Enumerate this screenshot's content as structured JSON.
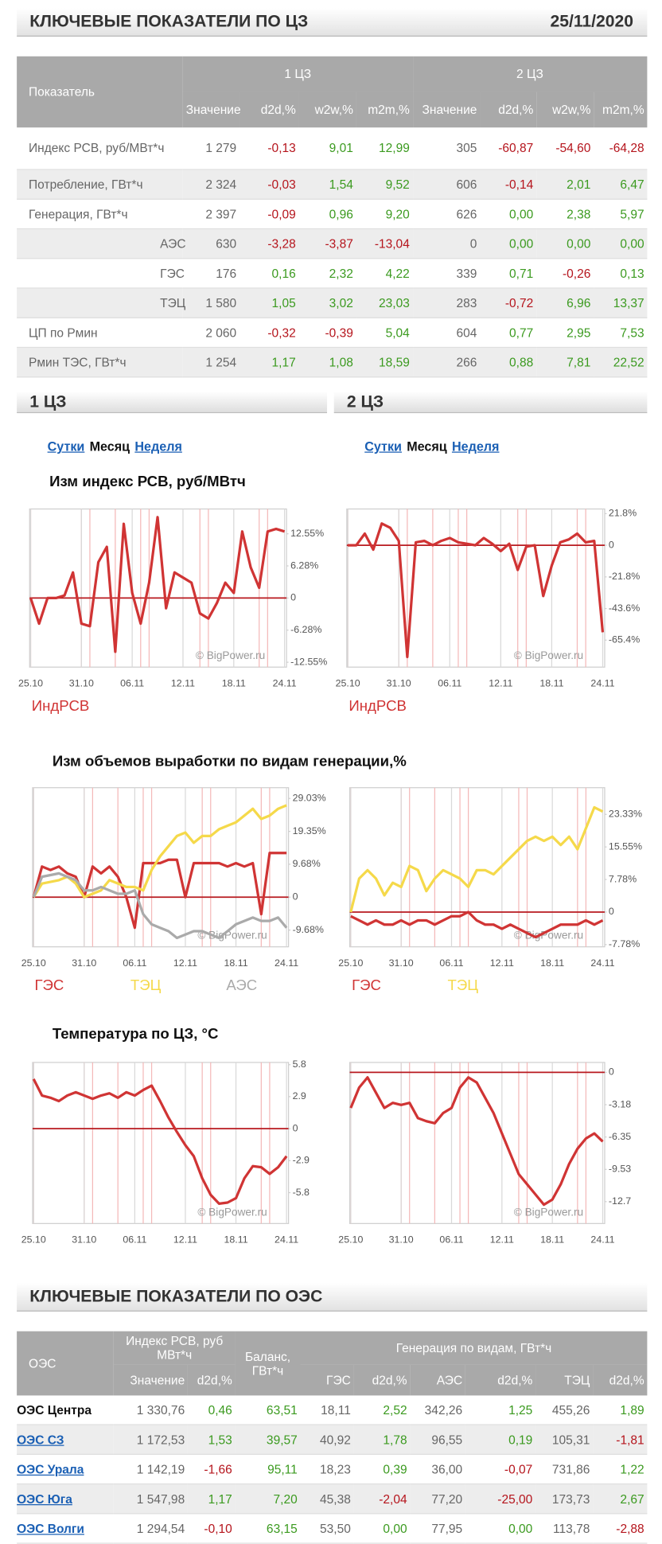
{
  "header": {
    "title": "КЛЮЧЕВЫЕ ПОКАЗАТЕЛИ ПО ЦЗ",
    "date": "25/11/2020"
  },
  "table1": {
    "header": {
      "indicator": "Показатель",
      "groups": [
        "1 ЦЗ",
        "2 ЦЗ"
      ],
      "columns": [
        "Значение",
        "d2d,%",
        "w2w,%",
        "m2m,%",
        "Значение",
        "d2d,%",
        "w2w,%",
        "m2m,%"
      ]
    },
    "rows": [
      {
        "label": "Индекс РСВ, руб/МВт*ч",
        "sub": false,
        "values": [
          "1 279",
          "-0,13",
          "9,01",
          "12,99",
          "305",
          "-60,87",
          "-54,60",
          "-64,28"
        ]
      },
      {
        "label": "Потребление, ГВт*ч",
        "sub": false,
        "values": [
          "2 324",
          "-0,03",
          "1,54",
          "9,52",
          "606",
          "-0,14",
          "2,01",
          "6,47"
        ]
      },
      {
        "label": "Генерация, ГВт*ч",
        "sub": false,
        "values": [
          "2 397",
          "-0,09",
          "0,96",
          "9,20",
          "626",
          "0,00",
          "2,38",
          "5,97"
        ]
      },
      {
        "label": "АЭС",
        "sub": true,
        "values": [
          "630",
          "-3,28",
          "-3,87",
          "-13,04",
          "0",
          "0,00",
          "0,00",
          "0,00"
        ]
      },
      {
        "label": "ГЭС",
        "sub": true,
        "values": [
          "176",
          "0,16",
          "2,32",
          "4,22",
          "339",
          "0,71",
          "-0,26",
          "0,13"
        ]
      },
      {
        "label": "ТЭЦ",
        "sub": true,
        "values": [
          "1 580",
          "1,05",
          "3,02",
          "23,03",
          "283",
          "-0,72",
          "6,96",
          "13,37"
        ]
      },
      {
        "label": "ЦП по Рмин",
        "sub": false,
        "values": [
          "2 060",
          "-0,32",
          "-0,39",
          "5,04",
          "604",
          "0,77",
          "2,95",
          "7,53"
        ]
      },
      {
        "label": "Рмин ТЭС, ГВт*ч",
        "sub": false,
        "values": [
          "1 254",
          "1,17",
          "1,08",
          "18,59",
          "266",
          "0,88",
          "7,81",
          "22,52"
        ]
      }
    ]
  },
  "zones": [
    {
      "title": "1 ЦЗ",
      "tabs": [
        "Сутки",
        "Месяц",
        "Неделя"
      ],
      "active_tab": 1
    },
    {
      "title": "2 ЦЗ",
      "tabs": [
        "Сутки",
        "Месяц",
        "Неделя"
      ],
      "active_tab": 1
    }
  ],
  "section_titles": [
    "Изм индекс РСВ, руб/МВтч",
    "Изм объемов выработки по видам генерации,%",
    "Температура по ЦЗ, °С"
  ],
  "chart_data": [
    {
      "type": "line",
      "watermark": "© BigPower.ru",
      "categories": [
        "25.10",
        null,
        null,
        null,
        null,
        null,
        "31.10",
        null,
        null,
        null,
        null,
        null,
        "06.11",
        null,
        null,
        null,
        null,
        null,
        "12.11",
        null,
        null,
        null,
        null,
        null,
        "18.11",
        null,
        null,
        null,
        null,
        null,
        "24.11"
      ],
      "ylim": [
        -13.5,
        17.4
      ],
      "yticks": [
        {
          "value": 12.55,
          "label": "12.55%"
        },
        {
          "value": 6.28,
          "label": "6.28%"
        },
        0,
        {
          "value": -6.28,
          "label": "-6.28%"
        },
        {
          "value": -12.55,
          "label": "-12.55%"
        }
      ],
      "series": [
        {
          "name": "ИндРСВ",
          "color": "#d03434",
          "values": [
            0,
            -5,
            0,
            0,
            0.5,
            5,
            -5,
            -5.5,
            7,
            10,
            -10.5,
            14.5,
            1,
            -5,
            3,
            15.8,
            -2,
            5,
            4,
            3,
            -3,
            -4,
            -1,
            3,
            1,
            13,
            6,
            2,
            13,
            13.5,
            13
          ]
        }
      ]
    },
    {
      "type": "line",
      "watermark": "© BigPower.ru",
      "categories": [
        "25.10",
        null,
        null,
        null,
        null,
        null,
        "31.10",
        null,
        null,
        null,
        null,
        null,
        "06.11",
        null,
        null,
        null,
        null,
        null,
        "12.11",
        null,
        null,
        null,
        null,
        null,
        "18.11",
        null,
        null,
        null,
        null,
        null,
        "24.11"
      ],
      "ylim": [
        -84,
        25
      ],
      "yticks": [
        {
          "value": 21.8,
          "label": "21.8%"
        },
        0,
        {
          "value": -21.8,
          "label": "-21.8%"
        },
        {
          "value": -43.6,
          "label": "-43.6%"
        },
        {
          "value": -65.4,
          "label": "-65.4%"
        }
      ],
      "series": [
        {
          "name": "ИндРСВ",
          "color": "#d03434",
          "values": [
            0,
            0,
            8,
            -3,
            15,
            12,
            3,
            -77,
            2,
            3,
            0,
            3,
            5,
            2,
            1,
            0,
            5,
            1,
            -4,
            1,
            -17,
            -1,
            0,
            -35,
            -14,
            2,
            4,
            8,
            2,
            3,
            -60
          ]
        }
      ]
    },
    {
      "type": "line",
      "watermark": "© BigPower.ru",
      "categories": [
        "25.10",
        null,
        null,
        null,
        null,
        null,
        "31.10",
        null,
        null,
        null,
        null,
        null,
        "06.11",
        null,
        null,
        null,
        null,
        null,
        "12.11",
        null,
        null,
        null,
        null,
        null,
        "18.11",
        null,
        null,
        null,
        null,
        null,
        "24.11"
      ],
      "ylim": [
        -14.6,
        32.2
      ],
      "yticks": [
        {
          "value": 29.03,
          "label": "29.03%"
        },
        {
          "value": 19.35,
          "label": "19.35%"
        },
        {
          "value": 9.68,
          "label": "9.68%"
        },
        0,
        {
          "value": -9.68,
          "label": "-9.68%"
        }
      ],
      "series": [
        {
          "name": "ГЭС",
          "color": "#d03434",
          "values": [
            0,
            9,
            8,
            9,
            7,
            6,
            0,
            9,
            7,
            9,
            6,
            0,
            -9,
            10,
            10,
            10,
            11,
            11,
            0,
            10,
            10,
            10,
            10,
            9,
            10,
            9,
            10,
            -5,
            13,
            13,
            13
          ]
        },
        {
          "name": "ТЭЦ",
          "color": "#f5d94a",
          "values": [
            0,
            4,
            4.5,
            5,
            6,
            4,
            0,
            1,
            2,
            5,
            4,
            3,
            3,
            2,
            8,
            12,
            15,
            18,
            19,
            16,
            18,
            18,
            20,
            21,
            22,
            24,
            26,
            23,
            24,
            26,
            27
          ]
        },
        {
          "name": "АЭС",
          "color": "#aaaaaa",
          "values": [
            0,
            6,
            6.5,
            7,
            6,
            5,
            2,
            2,
            3,
            2,
            1,
            1,
            2,
            -5,
            -8,
            -9,
            -10,
            -12,
            -11,
            -10,
            -10,
            -11,
            -12,
            -10,
            -8,
            -7,
            -6,
            -7,
            -7,
            -6,
            -9
          ]
        }
      ]
    },
    {
      "type": "line",
      "watermark": "© BigPower.ru",
      "categories": [
        "25.10",
        null,
        null,
        null,
        null,
        null,
        "31.10",
        null,
        null,
        null,
        null,
        null,
        "06.11",
        null,
        null,
        null,
        null,
        null,
        "12.11",
        null,
        null,
        null,
        null,
        null,
        "18.11",
        null,
        null,
        null,
        null,
        null,
        "24.11"
      ],
      "ylim": [
        -8.3,
        29.7
      ],
      "yticks": [
        {
          "value": 23.33,
          "label": "23.33%"
        },
        {
          "value": 15.55,
          "label": "15.55%"
        },
        {
          "value": 7.78,
          "label": "7.78%"
        },
        0,
        {
          "value": -7.78,
          "label": "-7.78%"
        }
      ],
      "series": [
        {
          "name": "ГЭС",
          "color": "#d03434",
          "values": [
            -1,
            -2,
            -3,
            -2,
            -3,
            -3,
            -2,
            -3,
            -2,
            -2,
            -3,
            -2,
            -1,
            -1,
            0,
            -2,
            -3,
            -3,
            -4,
            -3,
            -4,
            -5,
            -6,
            -5,
            -4,
            -3,
            -3,
            -3,
            -2,
            -3,
            -2
          ]
        },
        {
          "name": "ТЭЦ",
          "color": "#f5d94a",
          "values": [
            0,
            8,
            10,
            8,
            4,
            7,
            6,
            11,
            10,
            5,
            8,
            10,
            9,
            8,
            6,
            10,
            10,
            9,
            11,
            13,
            15,
            17,
            18,
            17,
            18,
            16,
            18,
            15,
            20,
            25,
            24
          ]
        }
      ]
    },
    {
      "type": "line",
      "watermark": "© BigPower.ru",
      "categories": [
        "25.10",
        null,
        null,
        null,
        null,
        null,
        "31.10",
        null,
        null,
        null,
        null,
        null,
        "06.11",
        null,
        null,
        null,
        null,
        null,
        "12.11",
        null,
        null,
        null,
        null,
        null,
        "18.11",
        null,
        null,
        null,
        null,
        null,
        "24.11"
      ],
      "ylim": [
        -8.6,
        6.0
      ],
      "yticks": [
        5.8,
        2.9,
        0,
        -2.9,
        -5.8
      ],
      "series": [
        {
          "name": "Температура",
          "color": "#d03434",
          "values": [
            4.5,
            3,
            2.8,
            2.5,
            3,
            3.3,
            3,
            2.7,
            3,
            3.2,
            2.8,
            3.3,
            3,
            3.5,
            3.9,
            2.5,
            1,
            -0.3,
            -1.5,
            -2.5,
            -4.5,
            -6,
            -6.8,
            -6.7,
            -6.3,
            -4.5,
            -3.4,
            -3.5,
            -4.1,
            -3.5,
            -2.5
          ]
        }
      ],
      "legend": false
    },
    {
      "type": "line",
      "watermark": "© BigPower.ru",
      "categories": [
        "25.10",
        null,
        null,
        null,
        null,
        null,
        "31.10",
        null,
        null,
        null,
        null,
        null,
        "06.11",
        null,
        null,
        null,
        null,
        null,
        "12.11",
        null,
        null,
        null,
        null,
        null,
        "18.11",
        null,
        null,
        null,
        null,
        null,
        "24.11"
      ],
      "ylim": [
        -14.85,
        0.97
      ],
      "yticks": [
        0,
        -3.18,
        -6.35,
        -9.53,
        -12.7
      ],
      "series": [
        {
          "name": "Температура",
          "color": "#d03434",
          "values": [
            -3.5,
            -1.5,
            -0.5,
            -2,
            -3.5,
            -3,
            -3.2,
            -3,
            -4.5,
            -4.8,
            -5,
            -4,
            -3.5,
            -1.5,
            -0.5,
            -1,
            -2.5,
            -4,
            -6,
            -8,
            -10,
            -11,
            -12,
            -13,
            -12.5,
            -11,
            -9,
            -7.5,
            -6.5,
            -6,
            -6.8
          ]
        }
      ],
      "legend": false
    }
  ],
  "table2": {
    "title": "КЛЮЧЕВЫЕ ПОКАЗАТЕЛИ ПО ОЭС",
    "header": {
      "oes": "ОЭС",
      "index": "Индекс РСВ, руб МВт*ч",
      "balance": "Баланс, ГВт*ч",
      "generation": "Генерация по видам, ГВт*ч",
      "columns": [
        "Значение",
        "d2d,%",
        "ГЭС",
        "d2d,%",
        "АЭС",
        "d2d,%",
        "ТЭЦ",
        "d2d,%"
      ]
    },
    "rows": [
      {
        "name": "ОЭС Центра",
        "link": false,
        "values": [
          "1 330,76",
          "0,46",
          "63,51",
          "18,11",
          "2,52",
          "342,26",
          "1,25",
          "455,26",
          "1,89"
        ]
      },
      {
        "name": "ОЭС СЗ",
        "link": true,
        "values": [
          "1 172,53",
          "1,53",
          "39,57",
          "40,92",
          "1,78",
          "96,55",
          "0,19",
          "105,31",
          "-1,81"
        ]
      },
      {
        "name": "ОЭС Урала",
        "link": true,
        "values": [
          "1 142,19",
          "-1,66",
          "95,11",
          "18,23",
          "0,39",
          "36,00",
          "-0,07",
          "731,86",
          "1,22"
        ]
      },
      {
        "name": "ОЭС Юга",
        "link": true,
        "values": [
          "1 547,98",
          "1,17",
          "7,20",
          "45,38",
          "-2,04",
          "77,20",
          "-25,00",
          "173,73",
          "2,67"
        ]
      },
      {
        "name": "ОЭС Волги",
        "link": true,
        "values": [
          "1 294,54",
          "-0,10",
          "63,15",
          "53,50",
          "0,00",
          "77,95",
          "0,00",
          "113,78",
          "-2,88"
        ]
      }
    ]
  }
}
